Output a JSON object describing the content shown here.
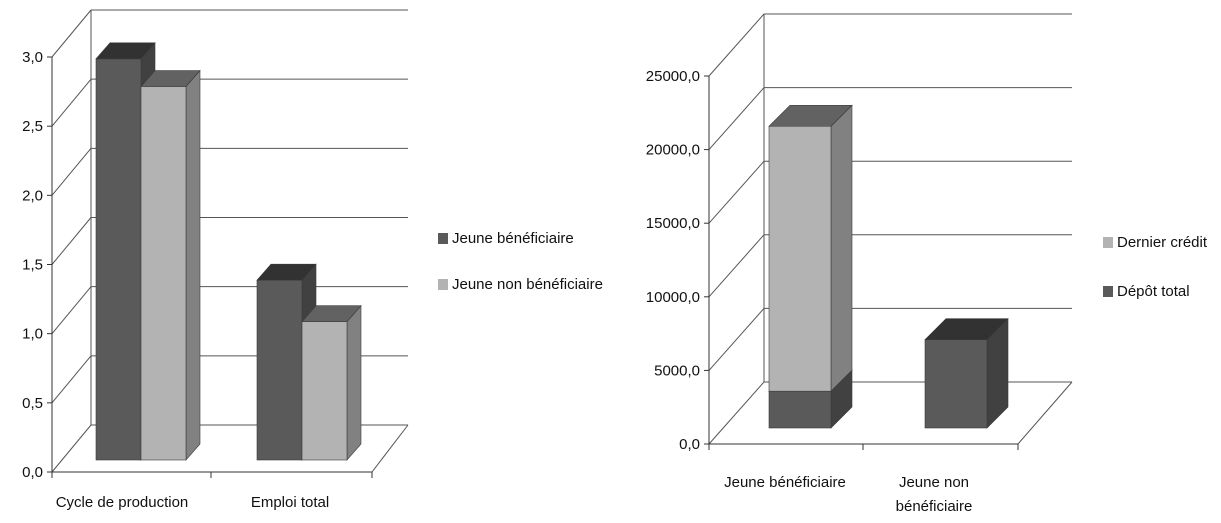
{
  "chart_data": [
    {
      "type": "bar",
      "categories": [
        "Cycle de production",
        "Emploi total"
      ],
      "series": [
        {
          "name": "Jeune bénéficiaire",
          "values": [
            2.9,
            1.3
          ],
          "color": "#5a5a5a"
        },
        {
          "name": "Jeune non bénéficiaire",
          "values": [
            2.7,
            1.0
          ],
          "color": "#b3b3b3"
        }
      ],
      "yticks": [
        "0,0",
        "0,5",
        "1,0",
        "1,5",
        "2,0",
        "2,5",
        "3,0"
      ],
      "ylim": [
        0,
        3
      ],
      "grid": true,
      "legend": "right"
    },
    {
      "type": "bar",
      "stacked": true,
      "categories": [
        "Jeune bénéficiaire",
        "Jeune non bénéficiaire"
      ],
      "series": [
        {
          "name": "Dépôt total",
          "values": [
            2500,
            6000
          ],
          "color": "#5a5a5a"
        },
        {
          "name": "Dernier crédit",
          "values": [
            18000,
            0
          ],
          "color": "#b3b3b3"
        }
      ],
      "yticks": [
        "0,0",
        "5000,0",
        "10000,0",
        "15000,0",
        "20000,0",
        "25000,0"
      ],
      "ylim": [
        0,
        25000
      ],
      "grid": true,
      "legend": "right"
    }
  ]
}
